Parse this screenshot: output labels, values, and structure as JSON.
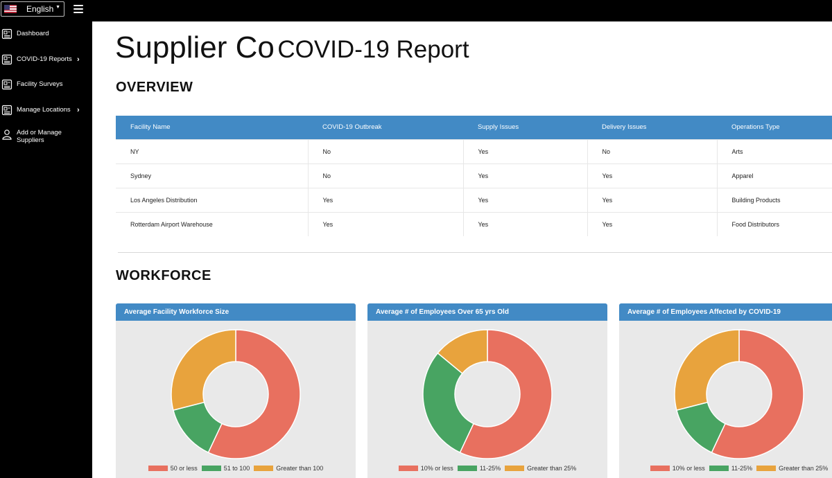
{
  "topbar": {
    "language": "English"
  },
  "sidebar": {
    "items": [
      {
        "label": "Dashboard",
        "icon": "dashboard-icon",
        "has_arrow": false
      },
      {
        "label": "COVID-19 Reports",
        "icon": "report-icon",
        "has_arrow": true
      },
      {
        "label": "Facility Surveys",
        "icon": "survey-icon",
        "has_arrow": false
      },
      {
        "label": "Manage Locations",
        "icon": "location-icon",
        "has_arrow": true
      },
      {
        "label": "Add or Manage Suppliers",
        "icon": "user-icon",
        "has_arrow": false
      }
    ]
  },
  "page": {
    "title_company": "Supplier Co",
    "title_report": "COVID-19 Report"
  },
  "overview": {
    "heading": "OVERVIEW",
    "columns": [
      "Facility Name",
      "COVID-19 Outbreak",
      "Supply Issues",
      "Delivery Issues",
      "Operations Type"
    ],
    "rows": [
      [
        "NY",
        "No",
        "Yes",
        "No",
        "Arts"
      ],
      [
        "Sydney",
        "No",
        "Yes",
        "Yes",
        "Apparel"
      ],
      [
        "Los Angeles Distribution",
        "Yes",
        "Yes",
        "Yes",
        "Building Products"
      ],
      [
        "Rotterdam Airport Warehouse",
        "Yes",
        "Yes",
        "Yes",
        "Food Distributors"
      ]
    ]
  },
  "workforce": {
    "heading": "WORKFORCE"
  },
  "colors": {
    "red": "#e8705f",
    "green": "#48a462",
    "orange": "#e8a33d",
    "header_blue": "#428ac5"
  },
  "chart_data": [
    {
      "type": "pie",
      "title": "Average Facility Workforce Size",
      "categories": [
        "50 or less",
        "51 to 100",
        "Greater than 100"
      ],
      "values": [
        57,
        14,
        29
      ],
      "colors": [
        "#e8705f",
        "#48a462",
        "#e8a33d"
      ]
    },
    {
      "type": "pie",
      "title": "Average # of Employees Over 65 yrs Old",
      "categories": [
        "10% or less",
        "11-25%",
        "Greater than 25%"
      ],
      "values": [
        57,
        29,
        14
      ],
      "colors": [
        "#e8705f",
        "#48a462",
        "#e8a33d"
      ]
    },
    {
      "type": "pie",
      "title": "Average # of Employees Affected by COVID-19",
      "categories": [
        "10% or less",
        "11-25%",
        "Greater than 25%"
      ],
      "values": [
        57,
        14,
        29
      ],
      "colors": [
        "#e8705f",
        "#48a462",
        "#e8a33d"
      ]
    }
  ]
}
